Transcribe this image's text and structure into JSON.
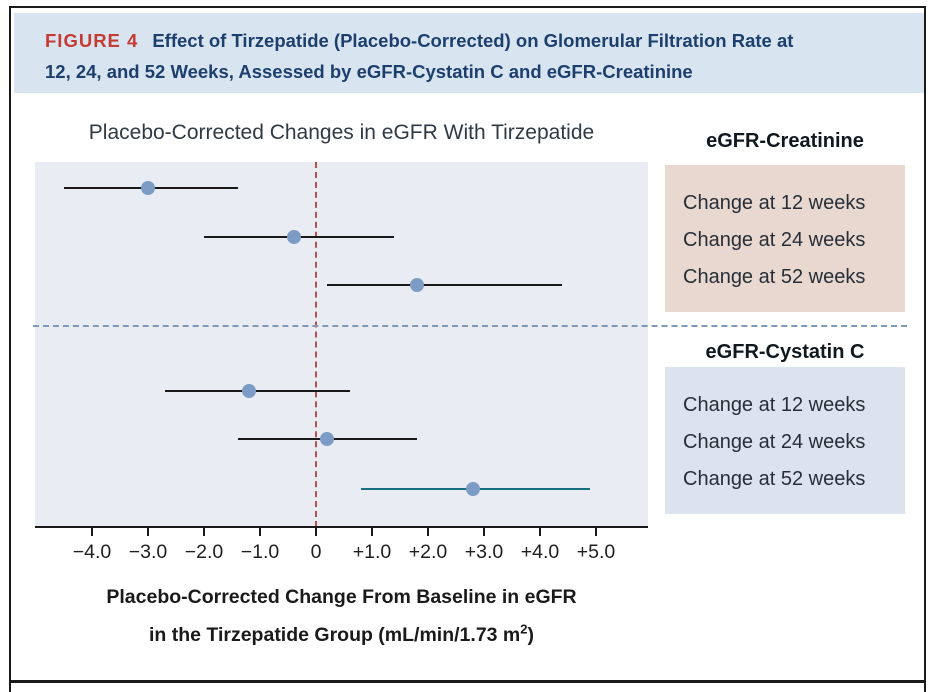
{
  "header": {
    "label": "FIGURE 4",
    "title_line1": "Effect of Tirzepatide (Placebo-Corrected) on Glomerular Filtration Rate at",
    "title_line2": "12, 24, and 52 Weeks, Assessed by eGFR-Cystatin C and eGFR-Creatinine"
  },
  "chart": {
    "title": "Placebo-Corrected Changes in eGFR With Tirzepatide",
    "caption_line1": "Placebo-Corrected Change From Baseline in eGFR",
    "caption_line2_pre": "in the Tirzepatide Group (mL/min/1.73 m",
    "caption_sup": "2",
    "caption_line2_post": ")"
  },
  "panels": [
    {
      "title": "eGFR-Creatinine",
      "items": [
        "Change at 12 weeks",
        "Change at 24 weeks",
        "Change at 52 weeks"
      ],
      "box_color": "#e9d8d0"
    },
    {
      "title": "eGFR-Cystatin C",
      "items": [
        "Change at 12 weeks",
        "Change at 24 weeks",
        "Change at 52 weeks"
      ],
      "box_color": "#dce3ee"
    }
  ],
  "chart_data": {
    "type": "scatter",
    "subtype": "forest-plot-dot-with-95CI",
    "title": "Placebo-Corrected Changes in eGFR With Tirzepatide",
    "xlabel": "Placebo-Corrected Change From Baseline in eGFR in the Tirzepatide Group (mL/min/1.73 m2)",
    "xlim": [
      -5.0,
      5.9
    ],
    "x_tick_values": [
      -4,
      -3,
      -2,
      -1,
      0,
      1,
      2,
      3,
      4,
      5
    ],
    "x_tick_labels": [
      "−4.0",
      "−3.0",
      "−2.0",
      "−1.0",
      "0",
      "+1.0",
      "+2.0",
      "+3.0",
      "+4.0",
      "+5.0"
    ],
    "zero_reference_x": 0,
    "grid": false,
    "series": [
      {
        "group": "eGFR-Creatinine",
        "label": "Change at 12 weeks",
        "estimate": -3.0,
        "ci_low": -4.5,
        "ci_high": -1.4,
        "line_color": "#1a1a1a"
      },
      {
        "group": "eGFR-Creatinine",
        "label": "Change at 24 weeks",
        "estimate": -0.4,
        "ci_low": -2.0,
        "ci_high": 1.4,
        "line_color": "#1a1a1a"
      },
      {
        "group": "eGFR-Creatinine",
        "label": "Change at 52 weeks",
        "estimate": 1.8,
        "ci_low": 0.2,
        "ci_high": 4.4,
        "line_color": "#1a1a1a"
      },
      {
        "group": "eGFR-Cystatin C",
        "label": "Change at 12 weeks",
        "estimate": -1.2,
        "ci_low": -2.7,
        "ci_high": 0.6,
        "line_color": "#1a1a1a"
      },
      {
        "group": "eGFR-Cystatin C",
        "label": "Change at 24 weeks",
        "estimate": 0.2,
        "ci_low": -1.4,
        "ci_high": 1.8,
        "line_color": "#1a1a1a"
      },
      {
        "group": "eGFR-Cystatin C",
        "label": "Change at 52 weeks",
        "estimate": 2.8,
        "ci_low": 0.8,
        "ci_high": 4.9,
        "line_color": "#166e7e"
      }
    ],
    "marker_color": "#7d9cc5",
    "zero_line_color": "#b15450",
    "divider_color": "#7f9ab8",
    "colors": {
      "header_band": "#d8e5f1",
      "figure_label_red": "#c53b32",
      "figure_title_navy": "#1d3f6d",
      "plot_background": "#e9edf3",
      "creatinine_box": "#e9d8d0",
      "cystatin_box": "#dce3ee"
    }
  }
}
